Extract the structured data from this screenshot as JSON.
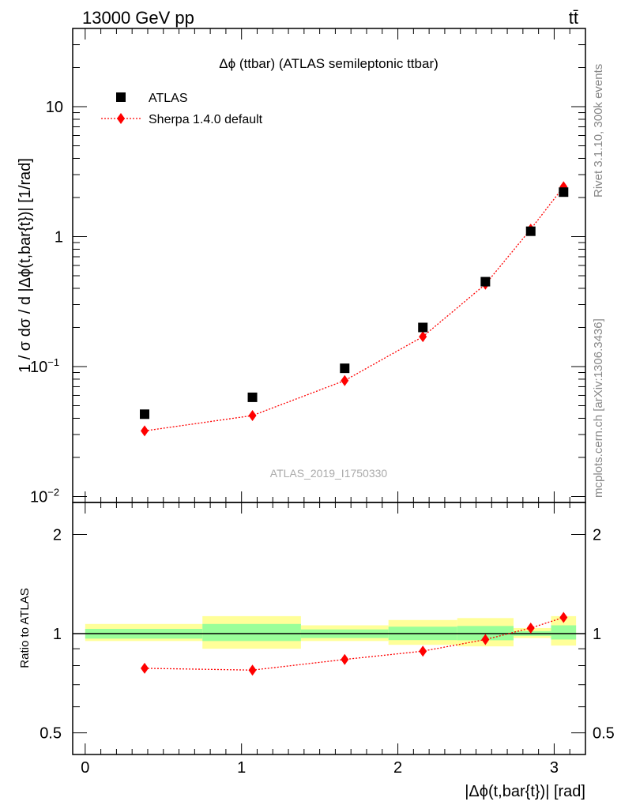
{
  "header": {
    "energy_label": "13000 GeV pp",
    "process_label": "tt̄"
  },
  "side_labels": {
    "rivet": "Rivet 3.1.10,  300k events",
    "source": "mcplots.cern.ch [arXiv:1306.3436]"
  },
  "chart_data": [
    {
      "type": "scatter",
      "title": "Δϕ (ttbar) (ATLAS semileptonic ttbar)",
      "watermark": "ATLAS_2019_I1750330",
      "ylabel": "1 / σ dσ / d |Δϕ(t,bar{t})| [1/rad]",
      "xlabel": "",
      "yscale": "log",
      "ylim": [
        0.009,
        40
      ],
      "xlim": [
        -0.08,
        3.2
      ],
      "ytick_labels": [
        {
          "value": 0.01,
          "base": "10",
          "exp": "−2"
        },
        {
          "value": 0.1,
          "base": "10",
          "exp": "−1"
        },
        {
          "value": 1,
          "base": "1",
          "exp": ""
        },
        {
          "value": 10,
          "base": "10",
          "exp": ""
        }
      ],
      "legend": {
        "position": "top-left"
      },
      "series": [
        {
          "name": "ATLAS",
          "marker": "square",
          "color": "#000000",
          "x": [
            0.38,
            1.07,
            1.66,
            2.16,
            2.56,
            2.85,
            3.06
          ],
          "values": [
            0.043,
            0.058,
            0.097,
            0.2,
            0.45,
            1.1,
            2.2
          ]
        },
        {
          "name": "Sherpa 1.4.0 default",
          "marker": "diamond",
          "line": "dotted",
          "color": "#ff0000",
          "x": [
            0.38,
            1.07,
            1.66,
            2.16,
            2.56,
            2.85,
            3.06
          ],
          "values": [
            0.032,
            0.042,
            0.078,
            0.17,
            0.43,
            1.14,
            2.42
          ]
        }
      ]
    },
    {
      "type": "scatter",
      "ylabel": "Ratio to ATLAS",
      "xlabel": "|Δϕ(t,bar{t})| [rad]",
      "yscale": "log",
      "ylim": [
        0.43,
        2.5
      ],
      "xlim": [
        -0.08,
        3.2
      ],
      "xtick_labels": [
        "0",
        "1",
        "2",
        "3"
      ],
      "xtick_values": [
        0,
        1,
        2,
        3
      ],
      "ytick_labels": [
        "0.5",
        "1",
        "2"
      ],
      "ytick_values": [
        0.5,
        1,
        2
      ],
      "uncertainty_bands": {
        "bins": [
          [
            0,
            0.75
          ],
          [
            0.75,
            1.38
          ],
          [
            1.38,
            1.94
          ],
          [
            1.94,
            2.38
          ],
          [
            2.38,
            2.74
          ],
          [
            2.74,
            2.98
          ],
          [
            2.98,
            3.14
          ]
        ],
        "inner": [
          [
            0.966,
            1.034
          ],
          [
            0.95,
            1.07
          ],
          [
            0.97,
            1.03
          ],
          [
            0.956,
            1.05
          ],
          [
            0.955,
            1.055
          ],
          [
            0.985,
            1.018
          ],
          [
            0.96,
            1.06
          ]
        ],
        "outer": [
          [
            0.95,
            1.07
          ],
          [
            0.9,
            1.13
          ],
          [
            0.95,
            1.06
          ],
          [
            0.925,
            1.1
          ],
          [
            0.915,
            1.115
          ],
          [
            0.97,
            1.04
          ],
          [
            0.92,
            1.13
          ]
        ],
        "inner_color": "#99ff99",
        "outer_color": "#ffff99"
      },
      "series": [
        {
          "name": "Sherpa 1.4.0 default",
          "marker": "diamond",
          "line": "dotted",
          "color": "#ff0000",
          "x": [
            0.38,
            1.07,
            1.66,
            2.16,
            2.56,
            2.85,
            3.06
          ],
          "values": [
            0.785,
            0.775,
            0.835,
            0.885,
            0.96,
            1.04,
            1.12
          ]
        }
      ]
    }
  ]
}
